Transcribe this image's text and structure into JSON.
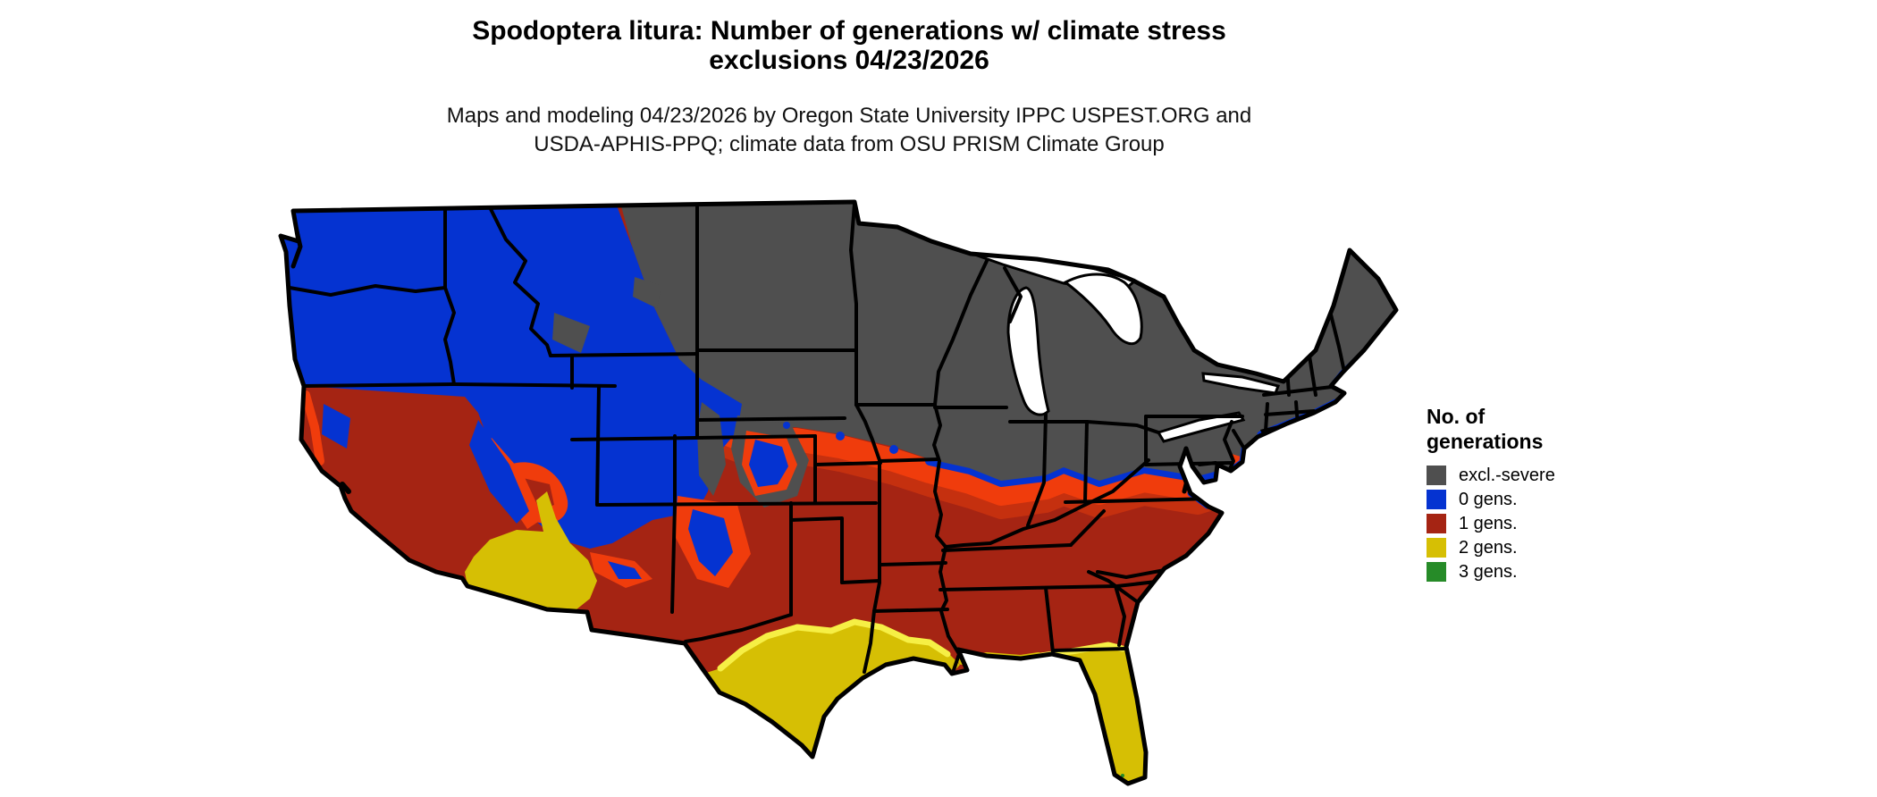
{
  "title": {
    "line1": "Spodoptera litura: Number of generations w/ climate stress",
    "line2": "exclusions 04/23/2026"
  },
  "subtitle": {
    "line1": "Maps and modeling 04/23/2026 by Oregon State University IPPC USPEST.ORG and",
    "line2": "USDA-APHIS-PPQ; climate data from OSU PRISM Climate Group"
  },
  "legend": {
    "title_line1": "No. of",
    "title_line2": "generations",
    "items": [
      {
        "label": "excl.-severe",
        "color": "#4f4f4f"
      },
      {
        "label": "0 gens.",
        "color": "#0533d1"
      },
      {
        "label": "1 gens.",
        "color": "#a52413"
      },
      {
        "label": "2 gens.",
        "color": "#d6bf04"
      },
      {
        "label": "3 gens.",
        "color": "#268b28"
      }
    ]
  },
  "map": {
    "colors": {
      "excl_severe": "#4f4f4f",
      "gens0": "#0533d1",
      "gens1": "#a52413",
      "gens2": "#d6bf04",
      "gens3": "#268b28",
      "transition_orange": "#f03c0c",
      "transition_mid_red": "#c5300f",
      "transition_pale_yellow": "#f6ef45",
      "water": "#ffffff",
      "state_border": "#000000"
    }
  }
}
